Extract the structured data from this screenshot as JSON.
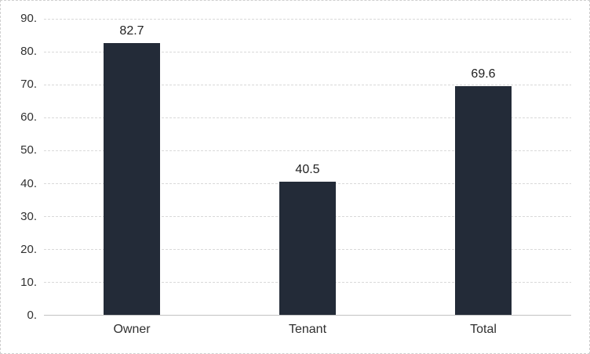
{
  "chart_data": {
    "type": "bar",
    "title": "",
    "categories": [
      "Owner",
      "Tenant",
      "Total"
    ],
    "values": [
      82.7,
      40.5,
      69.6
    ],
    "data_labels": [
      "82.7",
      "40.5",
      "69.6"
    ],
    "xlabel": "",
    "ylabel": "",
    "ylim": [
      0,
      90
    ],
    "yticks": [
      0,
      10,
      20,
      30,
      40,
      50,
      60,
      70,
      80,
      90
    ],
    "ytick_labels": [
      "0.",
      "10.",
      "20.",
      "30.",
      "40.",
      "50.",
      "60.",
      "70.",
      "80.",
      "90."
    ],
    "grid": true,
    "legend_position": "none",
    "bar_color": "#232B38",
    "gridline_color": "#D9D9D9",
    "axis_line_color": "#C3C3C3",
    "tick_label_color": "#303030",
    "data_label_color": "#222222",
    "background_color": "#FFFFFF",
    "border_color": "#CFCFCF"
  }
}
